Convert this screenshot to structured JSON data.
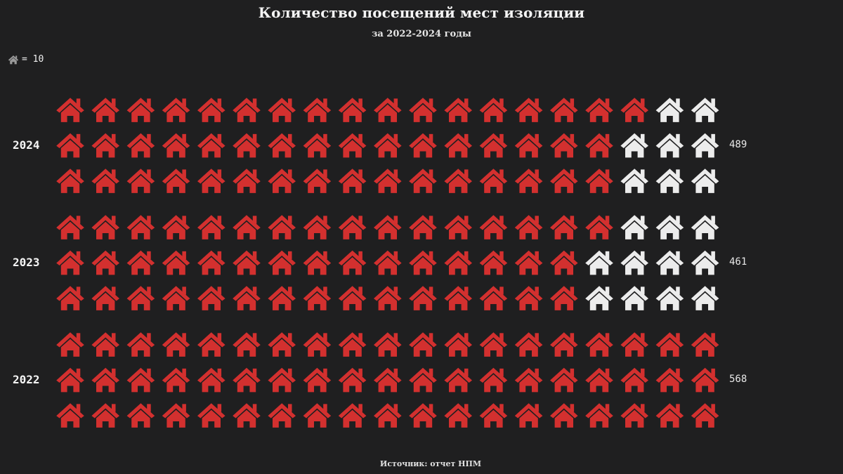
{
  "title": "Количество посещений мест изоляции",
  "subtitle": "за 2022-2024 годы",
  "legend": {
    "icon": "house-icon",
    "text": "= 10"
  },
  "source": "Источник: отчет НПМ",
  "colors": {
    "background": "#1f1f20",
    "filled": "#d3302f",
    "empty": "#ececec"
  },
  "chart_data": {
    "type": "pictogram",
    "unit_per_icon": 10,
    "icons_per_row": 19,
    "rows_per_group": 3,
    "categories": [
      "2024",
      "2023",
      "2022"
    ],
    "values": [
      489,
      461,
      568
    ],
    "value_labels": [
      "489",
      "461",
      "568"
    ]
  }
}
